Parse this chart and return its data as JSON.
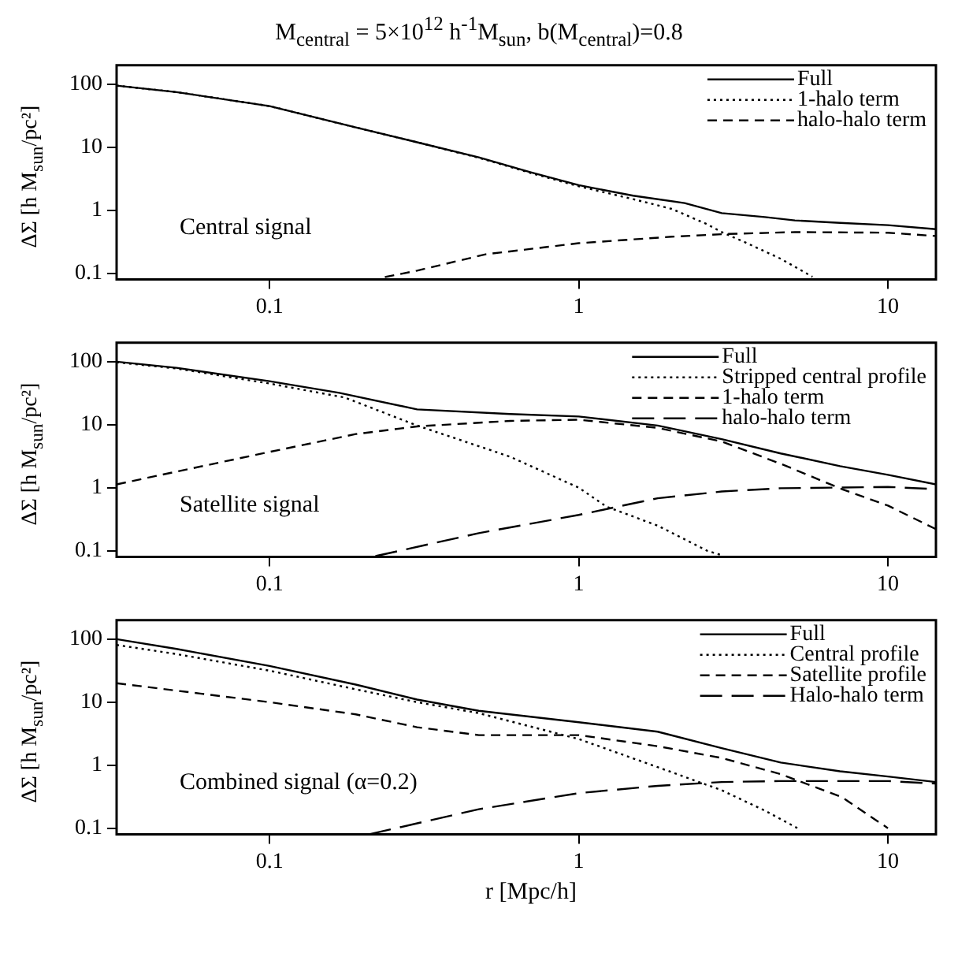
{
  "chart_data": [
    {
      "type": "line",
      "title": "M$_{central}$ = 5×10$^{12}$ h$^{-1}$M$_{sun}$, b(M$_{central}$)=0.8",
      "ylabel": "ΔΣ [h M$_{sun}$/pc²]",
      "log": "xy",
      "xlim": [
        0.032,
        14.3
      ],
      "ylim": [
        0.08,
        200
      ],
      "xticks": [
        0.1,
        1,
        10
      ],
      "yticks": [
        0.1,
        1,
        10,
        100
      ],
      "legend": "top right",
      "annotations": [
        "Central signal"
      ],
      "series": [
        {
          "name": "Full",
          "color": "#000000",
          "line_style": "solid",
          "x": [
            0.032,
            0.05,
            0.1,
            0.19,
            0.3,
            0.475,
            0.7,
            1,
            1.5,
            2.2,
            2.9,
            4,
            5,
            7,
            10,
            14.3
          ],
          "values": [
            95,
            75,
            45,
            20.6,
            12,
            6.9,
            4,
            2.5,
            1.7,
            1.3,
            0.9,
            0.78,
            0.69,
            0.63,
            0.58,
            0.5
          ]
        },
        {
          "name": "1-halo term",
          "color": "#000000",
          "line_style": "dotted",
          "x": [
            0.032,
            0.05,
            0.1,
            0.19,
            0.3,
            0.475,
            0.7,
            1,
            1.5,
            2,
            2.6,
            2.9,
            3.5,
            4.5,
            5.7
          ],
          "values": [
            95,
            75,
            45,
            20.6,
            12,
            6.8,
            3.9,
            2.4,
            1.5,
            1.05,
            0.6,
            0.45,
            0.3,
            0.17,
            0.088
          ]
        },
        {
          "name": "halo-halo term",
          "color": "#000000",
          "line_style": "dashed",
          "x": [
            0.236,
            0.3,
            0.5,
            1,
            2,
            3,
            5,
            10,
            14.3
          ],
          "values": [
            0.087,
            0.11,
            0.2,
            0.3,
            0.38,
            0.42,
            0.45,
            0.44,
            0.39
          ]
        }
      ]
    },
    {
      "type": "line",
      "ylabel": "ΔΣ [h M$_{sun}$/pc²]",
      "log": "xy",
      "xlim": [
        0.032,
        14.3
      ],
      "ylim": [
        0.08,
        200
      ],
      "xticks": [
        0.1,
        1,
        10
      ],
      "yticks": [
        0.1,
        1,
        10,
        100
      ],
      "legend": "top right",
      "annotations": [
        "Satellite signal"
      ],
      "series": [
        {
          "name": "Full",
          "color": "#000000",
          "line_style": "solid",
          "x": [
            0.032,
            0.05,
            0.1,
            0.168,
            0.3,
            0.6,
            1,
            1.8,
            2.9,
            4.5,
            7,
            10,
            14.3
          ],
          "values": [
            100,
            80,
            49,
            32,
            17.5,
            14.8,
            13.5,
            9.7,
            5.9,
            3.5,
            2.2,
            1.6,
            1.13
          ]
        },
        {
          "name": "Stripped central profile",
          "color": "#000000",
          "line_style": "dotted",
          "x": [
            0.032,
            0.05,
            0.1,
            0.175,
            0.3,
            0.6,
            1,
            1.23,
            1.8,
            2.6,
            2.9
          ],
          "values": [
            98,
            78,
            45,
            27,
            9.7,
            3.1,
            1.0,
            0.5,
            0.25,
            0.1,
            0.085
          ]
        },
        {
          "name": "1-halo term",
          "color": "#000000",
          "line_style": "dashed",
          "x": [
            0.032,
            0.1,
            0.19,
            0.3,
            0.6,
            1,
            1.8,
            2.9,
            4.5,
            7.1,
            10,
            14.3
          ],
          "values": [
            1.13,
            3.7,
            7.1,
            9.4,
            11.5,
            12,
            8.9,
            5.4,
            2.4,
            0.95,
            0.52,
            0.22
          ]
        },
        {
          "name": "halo-halo term",
          "color": "#000000",
          "line_style": "dashed",
          "x": [
            0.22,
            0.475,
            1,
            1.8,
            2.9,
            4.5,
            10,
            14.3
          ],
          "values": [
            0.082,
            0.19,
            0.37,
            0.68,
            0.87,
            0.98,
            1.03,
            0.95
          ]
        }
      ]
    },
    {
      "type": "line",
      "ylabel": "ΔΣ [h M$_{sun}$/pc²]",
      "xlabel": "r [Mpc/h]",
      "log": "xy",
      "xlim": [
        0.032,
        14.3
      ],
      "ylim": [
        0.08,
        200
      ],
      "xticks": [
        0.1,
        1,
        10
      ],
      "yticks": [
        0.1,
        1,
        10,
        100
      ],
      "legend": "top right",
      "annotations": [
        "Combined signal (α=0.2)"
      ],
      "series": [
        {
          "name": "Full",
          "color": "#000000",
          "line_style": "solid",
          "x": [
            0.032,
            0.05,
            0.1,
            0.19,
            0.3,
            0.475,
            1,
            1.8,
            2.9,
            4.5,
            7,
            10,
            14.3
          ],
          "values": [
            100,
            70,
            37.5,
            19,
            11,
            7.3,
            4.8,
            3.4,
            1.86,
            1.1,
            0.8,
            0.66,
            0.54
          ]
        },
        {
          "name": "Central profile",
          "color": "#000000",
          "line_style": "dotted",
          "x": [
            0.032,
            0.05,
            0.1,
            0.19,
            0.3,
            0.475,
            1,
            1.8,
            2.9,
            4,
            5.1
          ],
          "values": [
            81,
            58,
            31.6,
            16,
            10,
            6.7,
            2.6,
            0.93,
            0.4,
            0.19,
            0.1
          ]
        },
        {
          "name": "Satellite profile",
          "color": "#000000",
          "line_style": "dashed",
          "x": [
            0.032,
            0.1,
            0.19,
            0.3,
            0.475,
            1,
            1.8,
            2.9,
            4.5,
            7.1,
            10
          ],
          "values": [
            20,
            10,
            6.4,
            4.0,
            3.0,
            3.0,
            2.0,
            1.3,
            0.72,
            0.31,
            0.1
          ]
        },
        {
          "name": "Halo-halo term",
          "color": "#000000",
          "line_style": "dashed",
          "x": [
            0.21,
            0.475,
            1,
            1.8,
            2.9,
            4.5,
            10,
            14.3
          ],
          "values": [
            0.08,
            0.2,
            0.36,
            0.47,
            0.54,
            0.56,
            0.56,
            0.51
          ]
        }
      ]
    }
  ]
}
